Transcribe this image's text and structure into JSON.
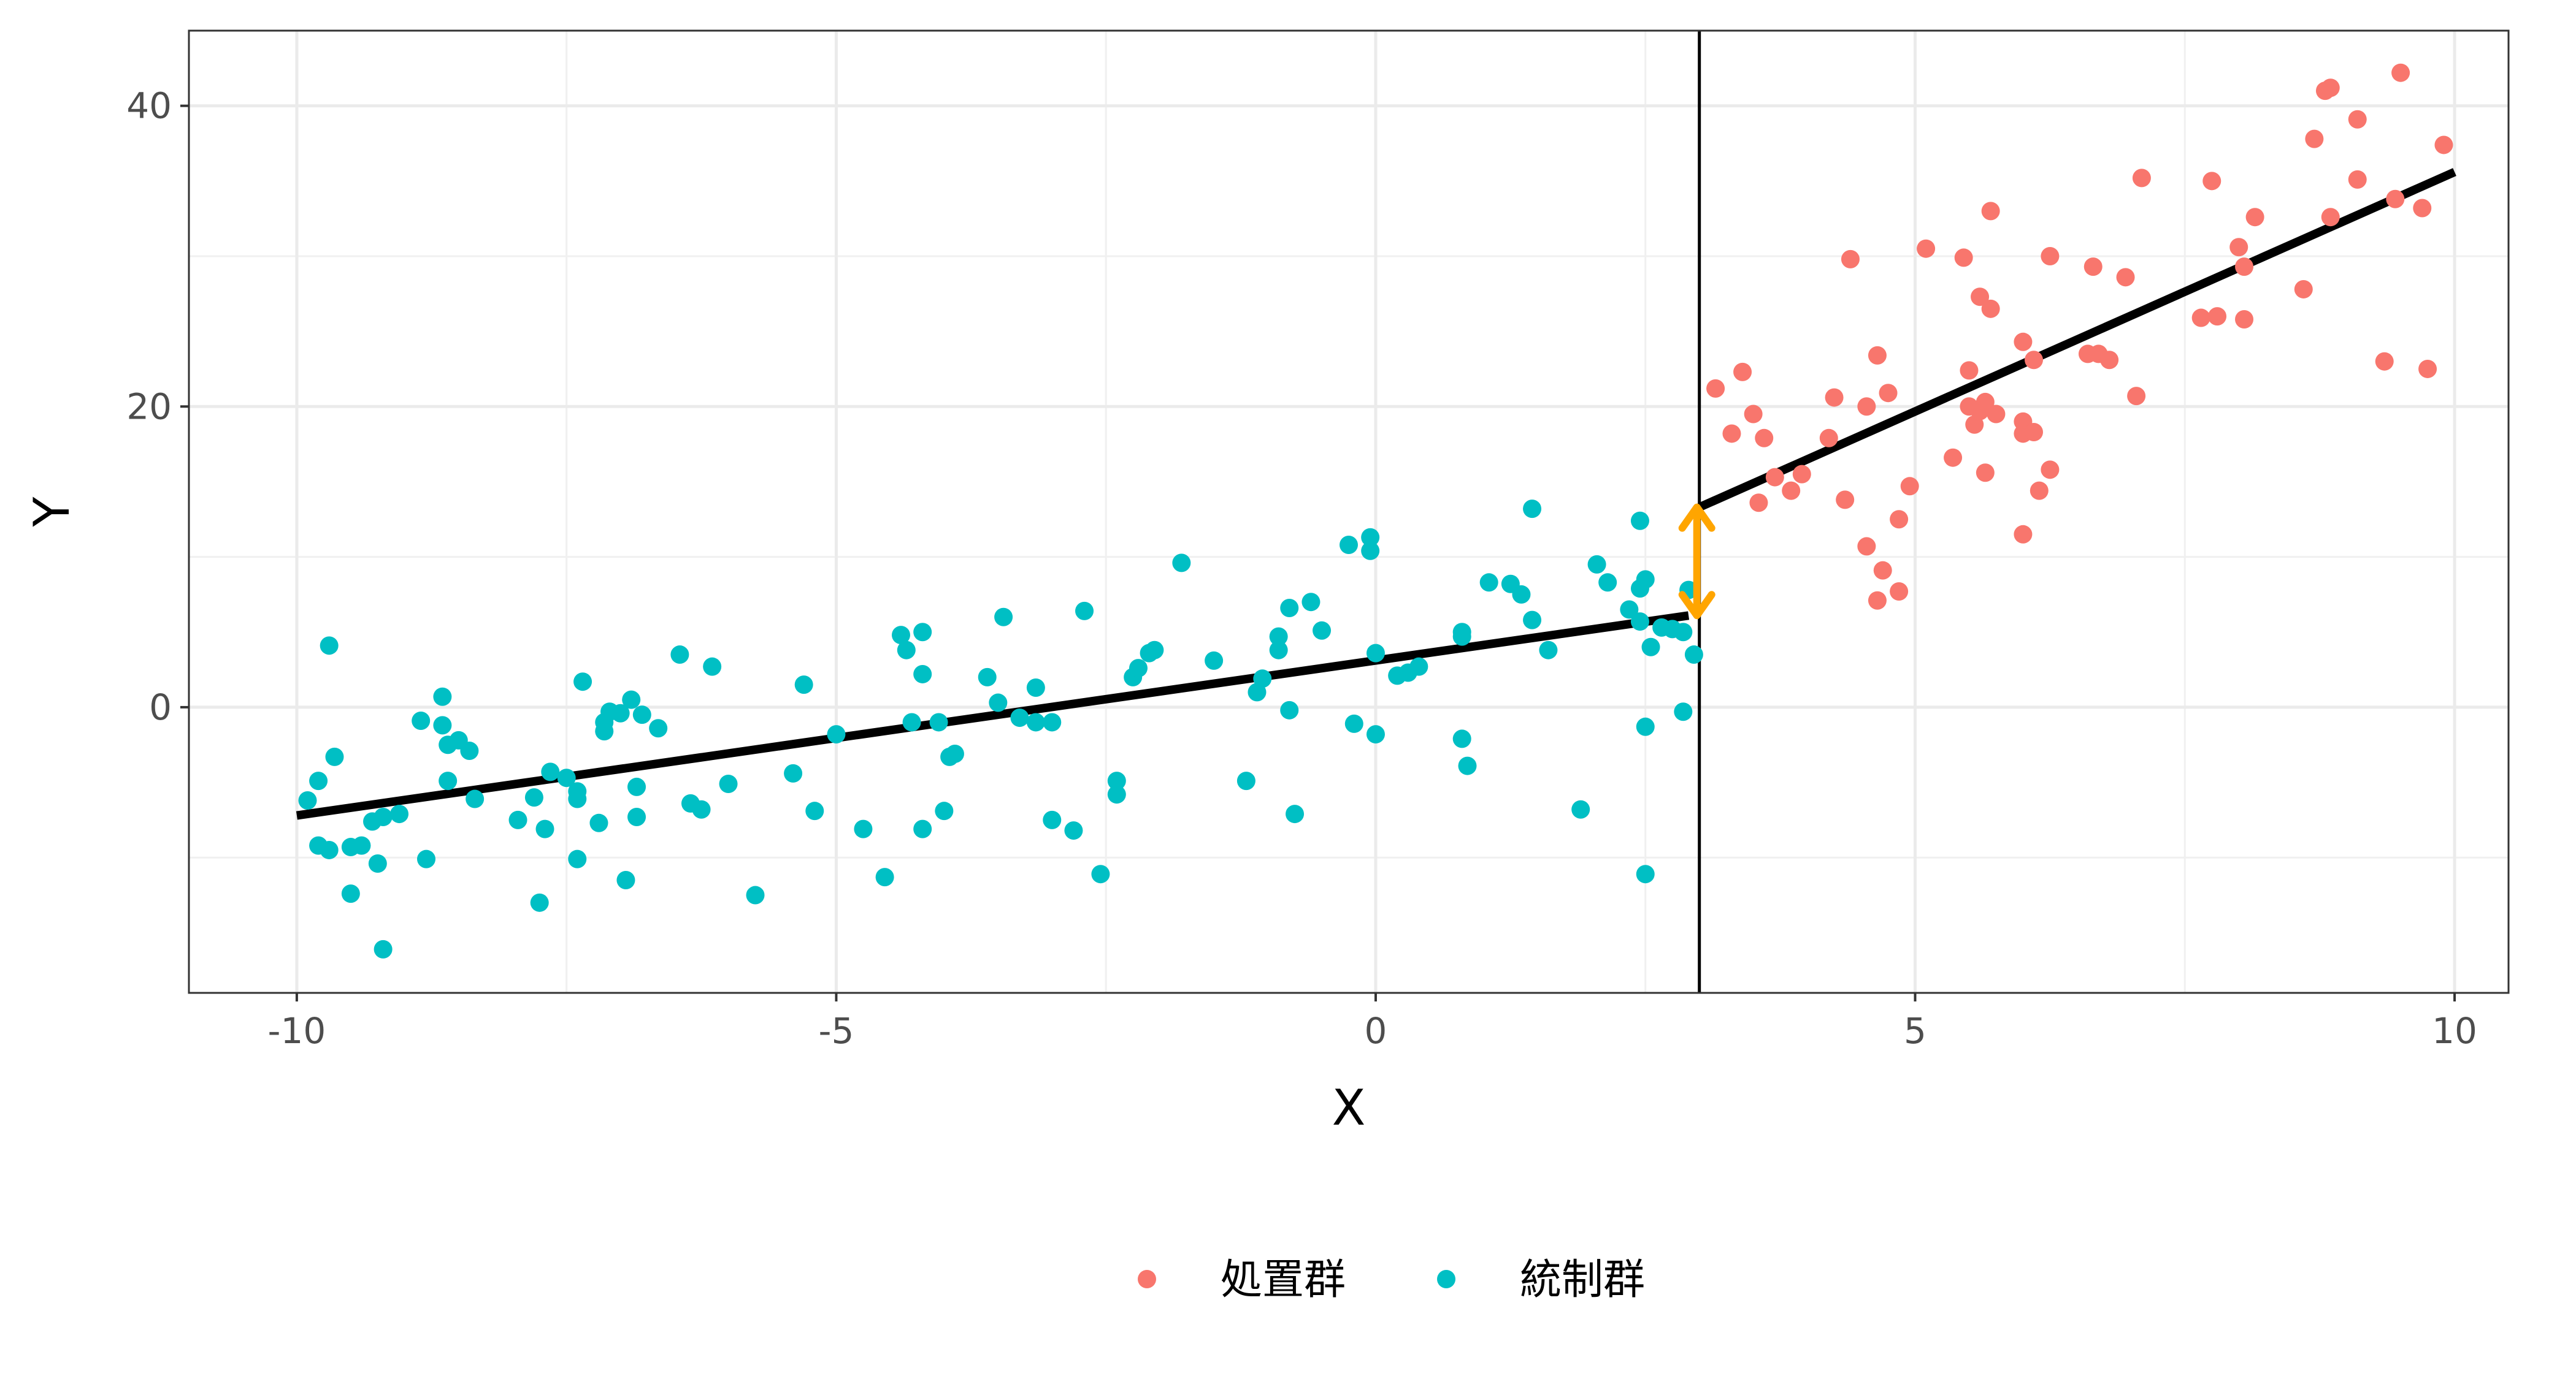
{
  "chart_data": {
    "type": "scatter",
    "title": "",
    "xlabel": "X",
    "ylabel": "Y",
    "xlim": [
      -11,
      10.5
    ],
    "ylim": [
      -19,
      45
    ],
    "xticks": [
      -10,
      -5,
      0,
      5,
      10
    ],
    "xtick_labels": [
      "-10",
      "-5",
      "0",
      "5",
      "10"
    ],
    "yticks": [
      0,
      20,
      40
    ],
    "ytick_labels": [
      "0",
      "20",
      "40"
    ],
    "grid": true,
    "legend_position": "bottom",
    "cutoff": 3,
    "series": [
      {
        "name": "処置群",
        "color": "#F8766D",
        "points": [
          [
            3.15,
            21.2
          ],
          [
            3.3,
            18.2
          ],
          [
            3.4,
            22.3
          ],
          [
            3.5,
            19.5
          ],
          [
            3.6,
            17.9
          ],
          [
            3.55,
            13.6
          ],
          [
            3.7,
            15.3
          ],
          [
            3.85,
            14.4
          ],
          [
            3.95,
            15.5
          ],
          [
            4.2,
            17.9
          ],
          [
            4.25,
            20.6
          ],
          [
            4.35,
            13.8
          ],
          [
            4.4,
            29.8
          ],
          [
            4.55,
            20.0
          ],
          [
            4.55,
            10.7
          ],
          [
            4.65,
            23.4
          ],
          [
            4.7,
            9.1
          ],
          [
            4.65,
            7.1
          ],
          [
            4.75,
            20.9
          ],
          [
            4.85,
            12.5
          ],
          [
            4.85,
            7.7
          ],
          [
            4.95,
            14.7
          ],
          [
            5.1,
            30.5
          ],
          [
            5.35,
            16.6
          ],
          [
            5.45,
            29.9
          ],
          [
            5.5,
            22.4
          ],
          [
            5.5,
            20.0
          ],
          [
            5.55,
            18.8
          ],
          [
            5.6,
            19.7
          ],
          [
            5.6,
            27.3
          ],
          [
            5.65,
            20.3
          ],
          [
            5.65,
            15.6
          ],
          [
            5.7,
            33.0
          ],
          [
            5.7,
            26.5
          ],
          [
            5.75,
            19.5
          ],
          [
            6.0,
            24.3
          ],
          [
            6.0,
            19.0
          ],
          [
            6.0,
            18.2
          ],
          [
            6.0,
            11.5
          ],
          [
            6.1,
            18.3
          ],
          [
            6.1,
            23.1
          ],
          [
            6.15,
            14.4
          ],
          [
            6.25,
            30.0
          ],
          [
            6.25,
            15.8
          ],
          [
            6.6,
            23.5
          ],
          [
            6.65,
            29.3
          ],
          [
            6.7,
            23.5
          ],
          [
            6.8,
            23.1
          ],
          [
            6.95,
            28.6
          ],
          [
            7.05,
            20.7
          ],
          [
            7.1,
            35.2
          ],
          [
            7.65,
            25.9
          ],
          [
            7.75,
            35.0
          ],
          [
            7.8,
            26.0
          ],
          [
            8.0,
            30.6
          ],
          [
            8.05,
            29.3
          ],
          [
            8.05,
            25.8
          ],
          [
            8.15,
            32.6
          ],
          [
            8.6,
            27.8
          ],
          [
            8.7,
            37.8
          ],
          [
            8.8,
            41.0
          ],
          [
            8.85,
            41.2
          ],
          [
            8.85,
            32.6
          ],
          [
            9.1,
            39.1
          ],
          [
            9.1,
            35.1
          ],
          [
            9.35,
            23.0
          ],
          [
            9.45,
            33.8
          ],
          [
            9.5,
            42.2
          ],
          [
            9.7,
            33.2
          ],
          [
            9.75,
            22.5
          ],
          [
            9.9,
            37.4
          ]
        ]
      },
      {
        "name": "統制群",
        "color": "#00BFC4",
        "points": [
          [
            -9.9,
            -6.2
          ],
          [
            -9.8,
            -4.9
          ],
          [
            -9.8,
            -9.2
          ],
          [
            -9.7,
            4.1
          ],
          [
            -9.65,
            -3.3
          ],
          [
            -9.7,
            -9.5
          ],
          [
            -9.5,
            -12.4
          ],
          [
            -9.5,
            -9.3
          ],
          [
            -9.4,
            -9.2
          ],
          [
            -9.3,
            -7.6
          ],
          [
            -9.25,
            -10.4
          ],
          [
            -9.2,
            -16.1
          ],
          [
            -9.2,
            -7.3
          ],
          [
            -9.05,
            -7.1
          ],
          [
            -8.85,
            -0.9
          ],
          [
            -8.8,
            -10.1
          ],
          [
            -8.65,
            -1.2
          ],
          [
            -8.65,
            0.7
          ],
          [
            -8.6,
            -2.5
          ],
          [
            -8.6,
            -4.9
          ],
          [
            -8.5,
            -2.2
          ],
          [
            -8.4,
            -2.9
          ],
          [
            -8.35,
            -6.1
          ],
          [
            -7.95,
            -7.5
          ],
          [
            -7.8,
            -6.0
          ],
          [
            -7.75,
            -13.0
          ],
          [
            -7.7,
            -8.1
          ],
          [
            -7.65,
            -4.3
          ],
          [
            -7.5,
            -4.7
          ],
          [
            -7.4,
            -5.6
          ],
          [
            -7.4,
            -10.1
          ],
          [
            -7.4,
            -6.1
          ],
          [
            -7.35,
            1.7
          ],
          [
            -7.2,
            -7.7
          ],
          [
            -7.15,
            -1.6
          ],
          [
            -7.15,
            -1.0
          ],
          [
            -7.1,
            -0.3
          ],
          [
            -7.0,
            -0.4
          ],
          [
            -6.95,
            -11.5
          ],
          [
            -6.9,
            0.5
          ],
          [
            -6.85,
            -7.3
          ],
          [
            -6.85,
            -5.3
          ],
          [
            -6.8,
            -0.5
          ],
          [
            -6.65,
            -1.4
          ],
          [
            -6.45,
            3.5
          ],
          [
            -6.35,
            -6.4
          ],
          [
            -6.25,
            -6.8
          ],
          [
            -6.15,
            2.7
          ],
          [
            -6.0,
            -5.1
          ],
          [
            -5.75,
            -12.5
          ],
          [
            -5.4,
            -4.4
          ],
          [
            -5.3,
            1.5
          ],
          [
            -5.2,
            -6.9
          ],
          [
            -5.0,
            -1.8
          ],
          [
            -4.75,
            -8.1
          ],
          [
            -4.55,
            -11.3
          ],
          [
            -4.4,
            4.8
          ],
          [
            -4.35,
            3.8
          ],
          [
            -4.3,
            -1.0
          ],
          [
            -4.2,
            5.0
          ],
          [
            -4.2,
            2.2
          ],
          [
            -4.05,
            -1.0
          ],
          [
            -4.0,
            -6.9
          ],
          [
            -4.2,
            -8.1
          ],
          [
            -3.95,
            -3.3
          ],
          [
            -3.9,
            -3.1
          ],
          [
            -3.6,
            2.0
          ],
          [
            -3.5,
            0.3
          ],
          [
            -3.45,
            6.0
          ],
          [
            -3.3,
            -0.7
          ],
          [
            -3.15,
            1.3
          ],
          [
            -3.15,
            -1.0
          ],
          [
            -3.0,
            -7.5
          ],
          [
            -3.0,
            -1.0
          ],
          [
            -2.8,
            -8.2
          ],
          [
            -2.7,
            6.4
          ],
          [
            -2.55,
            -11.1
          ],
          [
            -2.4,
            -5.8
          ],
          [
            -2.4,
            -4.9
          ],
          [
            -2.25,
            2.0
          ],
          [
            -2.2,
            2.6
          ],
          [
            -2.1,
            3.6
          ],
          [
            -2.05,
            3.8
          ],
          [
            -1.8,
            9.6
          ],
          [
            -1.5,
            3.1
          ],
          [
            -1.2,
            -4.9
          ],
          [
            -1.1,
            1.0
          ],
          [
            -1.05,
            1.9
          ],
          [
            -0.9,
            3.8
          ],
          [
            -0.9,
            4.7
          ],
          [
            -0.8,
            -0.2
          ],
          [
            -0.8,
            6.6
          ],
          [
            -0.75,
            -7.1
          ],
          [
            -0.6,
            7.0
          ],
          [
            -0.5,
            5.1
          ],
          [
            -0.25,
            10.8
          ],
          [
            -0.2,
            -1.1
          ],
          [
            -0.05,
            11.3
          ],
          [
            -0.05,
            10.4
          ],
          [
            0.0,
            3.6
          ],
          [
            0.0,
            -1.8
          ],
          [
            0.2,
            2.1
          ],
          [
            0.3,
            2.3
          ],
          [
            0.4,
            2.7
          ],
          [
            0.8,
            4.7
          ],
          [
            0.8,
            5.0
          ],
          [
            0.8,
            -2.1
          ],
          [
            0.85,
            -3.9
          ],
          [
            1.05,
            8.3
          ],
          [
            1.25,
            8.2
          ],
          [
            1.35,
            7.5
          ],
          [
            1.45,
            13.2
          ],
          [
            1.45,
            5.8
          ],
          [
            1.6,
            3.8
          ],
          [
            1.9,
            -6.8
          ],
          [
            2.05,
            9.5
          ],
          [
            2.15,
            8.3
          ],
          [
            2.45,
            7.9
          ],
          [
            2.5,
            8.5
          ],
          [
            2.5,
            -1.3
          ],
          [
            2.35,
            6.5
          ],
          [
            2.45,
            5.7
          ],
          [
            2.45,
            12.4
          ],
          [
            2.5,
            -11.1
          ],
          [
            2.55,
            4.0
          ],
          [
            2.65,
            5.3
          ],
          [
            2.75,
            5.2
          ],
          [
            2.85,
            5.0
          ],
          [
            2.85,
            -0.3
          ],
          [
            2.9,
            7.8
          ],
          [
            2.95,
            3.5
          ]
        ]
      }
    ],
    "fit_lines": [
      {
        "name": "left",
        "x": [
          -10,
          2.9
        ],
        "y": [
          -7.2,
          6.1
        ]
      },
      {
        "name": "right",
        "x": [
          3.0,
          10
        ],
        "y": [
          13.3,
          35.6
        ]
      }
    ],
    "jump_arrow": {
      "x": 3.0,
      "y_from": 6.1,
      "y_to": 13.3,
      "color": "#FFA500"
    },
    "legend": {
      "items": [
        {
          "label": "処置群",
          "color": "#F8766D"
        },
        {
          "label": "統制群",
          "color": "#00BFC4"
        }
      ]
    }
  }
}
